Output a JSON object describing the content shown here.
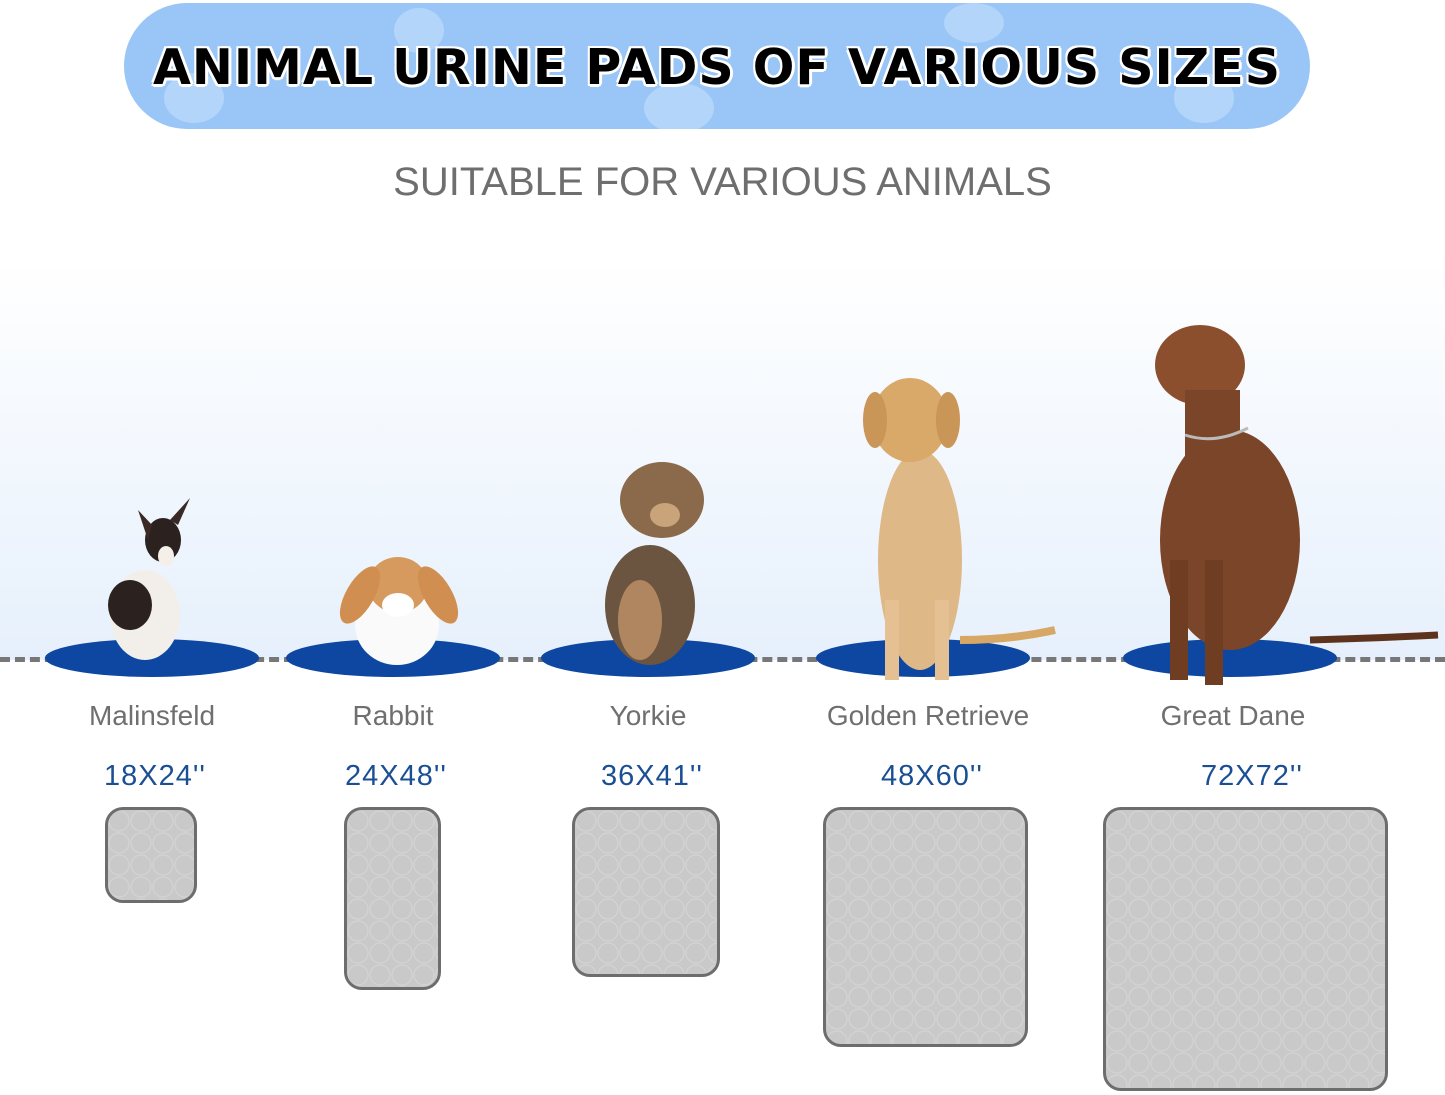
{
  "header": {
    "title": "ANIMAL URINE PADS OF VARIOUS SIZES",
    "subtitle": "SUITABLE FOR VARIOUS ANIMALS"
  },
  "colors": {
    "banner": "#99c6f7",
    "pad_mat": "#0d47a1",
    "size_text": "#1b4f94",
    "pad_gray": "#c9c9c9"
  },
  "animals": [
    {
      "name": "Malinsfeld",
      "size": "18X24''"
    },
    {
      "name": "Rabbit",
      "size": "24X48''"
    },
    {
      "name": "Yorkie",
      "size": "36X41''"
    },
    {
      "name": "Golden Retrieve",
      "size": "48X60''"
    },
    {
      "name": "Great Dane",
      "size": "72X72''"
    }
  ]
}
